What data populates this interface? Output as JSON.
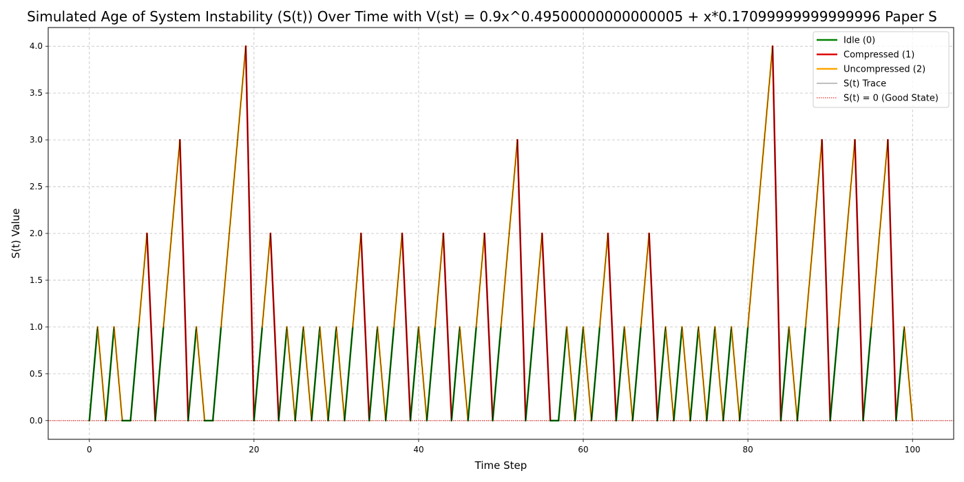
{
  "chart_data": {
    "type": "line",
    "title": "Simulated Age of System Instability (S(t)) Over Time with V(st) = 0.9x^0.49500000000000005 + x*0.17099999999999996 Paper S",
    "xlabel": "Time Step",
    "ylabel": "S(t) Value",
    "xlim": [
      -5,
      105
    ],
    "ylim": [
      -0.2,
      4.2
    ],
    "xticks": [
      0,
      20,
      40,
      60,
      80,
      100
    ],
    "xtick_labels": [
      "0",
      "20",
      "40",
      "60",
      "80",
      "100"
    ],
    "yticks": [
      0,
      0.5,
      1,
      1.5,
      2,
      2.5,
      3,
      3.5,
      4
    ],
    "ytick_labels": [
      "0.0",
      "0.5",
      "1.0",
      "1.5",
      "2.0",
      "2.5",
      "3.0",
      "3.5",
      "4.0"
    ],
    "grid": true,
    "legend_position": "top-right",
    "x": [
      0,
      1,
      2,
      3,
      4,
      5,
      6,
      7,
      8,
      9,
      10,
      11,
      12,
      13,
      14,
      15,
      16,
      17,
      18,
      19,
      20,
      21,
      22,
      23,
      24,
      25,
      26,
      27,
      28,
      29,
      30,
      31,
      32,
      33,
      34,
      35,
      36,
      37,
      38,
      39,
      40,
      41,
      42,
      43,
      44,
      45,
      46,
      47,
      48,
      49,
      50,
      51,
      52,
      53,
      54,
      55,
      56,
      57,
      58,
      59,
      60,
      61,
      62,
      63,
      64,
      65,
      66,
      67,
      68,
      69,
      70,
      71,
      72,
      73,
      74,
      75,
      76,
      77,
      78,
      79,
      80,
      81,
      82,
      83,
      84,
      85,
      86,
      87,
      88,
      89,
      90,
      91,
      92,
      93,
      94,
      95,
      96,
      97,
      98,
      99,
      100
    ],
    "values": [
      0,
      1,
      0,
      1,
      0,
      0,
      1,
      2,
      0,
      1,
      2,
      3,
      0,
      1,
      0,
      0,
      1,
      2,
      3,
      4,
      0,
      1,
      2,
      0,
      1,
      0,
      1,
      0,
      1,
      0,
      1,
      0,
      1,
      2,
      0,
      1,
      0,
      1,
      2,
      0,
      1,
      0,
      1,
      2,
      0,
      1,
      0,
      1,
      2,
      0,
      1,
      2,
      3,
      0,
      1,
      2,
      0,
      0,
      1,
      0,
      1,
      0,
      1,
      2,
      0,
      1,
      0,
      1,
      2,
      0,
      1,
      0,
      1,
      0,
      1,
      0,
      1,
      0,
      1,
      0,
      1,
      2,
      3,
      4,
      0,
      1,
      0,
      1,
      2,
      3,
      0,
      1,
      2,
      3,
      0,
      1,
      2,
      3,
      0,
      1,
      0
    ],
    "series": [
      {
        "name": "Idle (0)",
        "color": "#008000",
        "width": 2.5,
        "style": "solid"
      },
      {
        "name": "Compressed (1)",
        "color": "#e00000",
        "width": 2.5,
        "style": "solid"
      },
      {
        "name": "Uncompressed (2)",
        "color": "#ffa500",
        "width": 2.5,
        "style": "solid"
      },
      {
        "name": "S(t) Trace",
        "color": "#000000",
        "width": 0.6,
        "style": "solid"
      },
      {
        "name": "S(t) = 0 (Good State)",
        "color": "#e00000",
        "width": 1,
        "style": "dotted",
        "value": 0
      }
    ]
  }
}
